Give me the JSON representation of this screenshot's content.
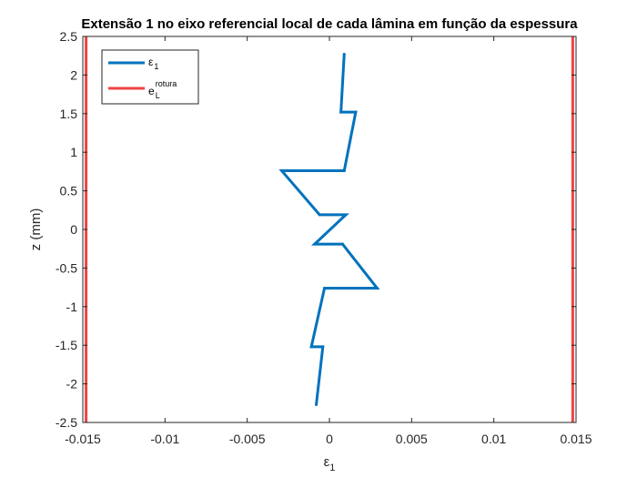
{
  "chart_data": {
    "type": "line",
    "title": "Extensão 1 no eixo referencial local de cada lâmina em função da espessura",
    "xlabel": {
      "base": "ε",
      "sub": "1"
    },
    "ylabel": "z (mm)",
    "xlim": [
      -0.015,
      0.015
    ],
    "ylim": [
      -2.5,
      2.5
    ],
    "xticks": [
      -0.015,
      -0.01,
      -0.005,
      0,
      0.005,
      0.01,
      0.015
    ],
    "xtick_labels": [
      "-0.015",
      "-0.01",
      "-0.005",
      "0",
      "0.005",
      "0.01",
      "0.015"
    ],
    "yticks": [
      2.5,
      2,
      1.5,
      1,
      0.5,
      0,
      -0.5,
      -1,
      -1.5,
      -2,
      -2.5
    ],
    "ytick_labels": [
      "2.5",
      "2",
      "1.5",
      "1",
      "0.5",
      "0",
      "-0.5",
      "-1",
      "-1.5",
      "-2",
      "-2.5"
    ],
    "grid": false,
    "legend_position": "top-left",
    "series": [
      {
        "name": "ε1",
        "label_base": "ε",
        "label_sub": "1",
        "color": "#0072BD",
        "points": [
          [
            0.0009,
            2.27
          ],
          [
            0.0007,
            1.52
          ],
          [
            0.0016,
            1.52
          ],
          [
            0.0009,
            0.76
          ],
          [
            -0.0029,
            0.76
          ],
          [
            -0.0006,
            0.19
          ],
          [
            0.001,
            0.19
          ],
          [
            -0.0009,
            -0.19
          ],
          [
            0.0008,
            -0.19
          ],
          [
            0.0029,
            -0.76
          ],
          [
            -0.0003,
            -0.76
          ],
          [
            -0.0011,
            -1.52
          ],
          [
            -0.0004,
            -1.52
          ],
          [
            -0.0008,
            -2.27
          ]
        ]
      },
      {
        "name": "eLrotura",
        "label_base": "e",
        "label_sub": "L",
        "label_sup": "rotura",
        "color": "#EE4444",
        "vertical_lines": [
          -0.0148,
          0.0148
        ]
      }
    ]
  }
}
